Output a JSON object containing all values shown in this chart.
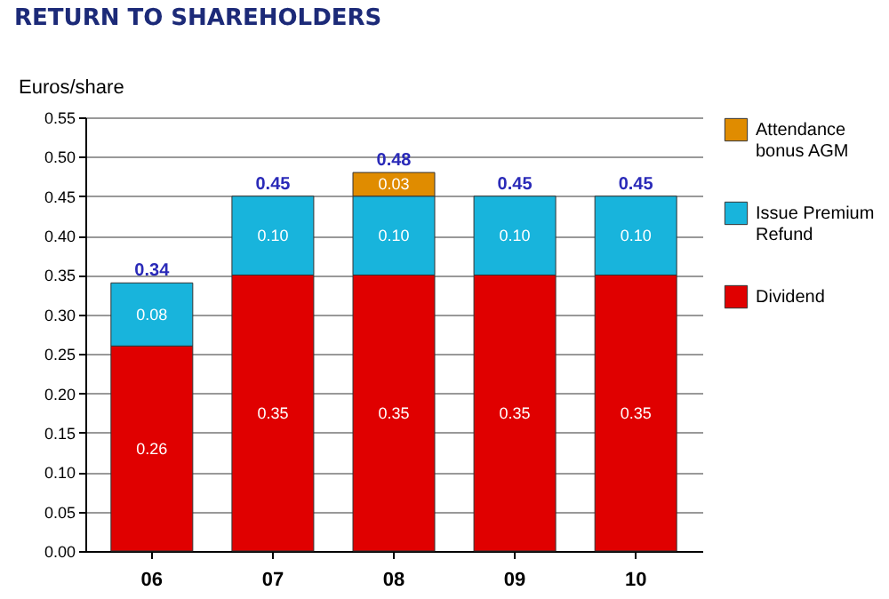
{
  "chart_data": {
    "type": "bar",
    "title": "RETURN TO SHAREHOLDERS",
    "ylabel": "Euros/share",
    "categories": [
      "06",
      "07",
      "08",
      "09",
      "10"
    ],
    "series": [
      {
        "name": "Dividend",
        "color": "#e00000",
        "values": [
          0.26,
          0.35,
          0.35,
          0.35,
          0.35
        ],
        "value_labels": [
          "0.26",
          "0.35",
          "0.35",
          "0.35",
          "0.35"
        ]
      },
      {
        "name": "Issue Premium Refund",
        "color": "#18b4dc",
        "values": [
          0.08,
          0.1,
          0.1,
          0.1,
          0.1
        ],
        "value_labels": [
          "0.08",
          "0.10",
          "0.10",
          "0.10",
          "0.10"
        ]
      },
      {
        "name": "Attendance bonus AGM",
        "color": "#e08c00",
        "values": [
          null,
          null,
          0.03,
          null,
          null
        ],
        "value_labels": [
          null,
          null,
          "0.03",
          null,
          null
        ]
      }
    ],
    "stacked": true,
    "totals": [
      "0.34",
      "0.45",
      "0.48",
      "0.45",
      "0.45"
    ],
    "ylim": [
      0,
      0.55
    ],
    "yticks": [
      "0.00",
      "0.05",
      "0.10",
      "0.15",
      "0.20",
      "0.25",
      "0.30",
      "0.35",
      "0.40",
      "0.45",
      "0.50",
      "0.55"
    ],
    "grid": "y",
    "legend": "right"
  }
}
